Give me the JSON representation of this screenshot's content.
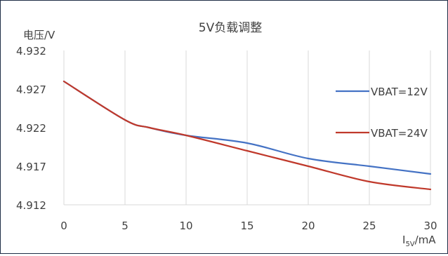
{
  "chart_data": {
    "type": "line",
    "title": "5V负载调整",
    "ylabel": "电压/V",
    "xlabel": {
      "main": "I",
      "subscript": "5V",
      "suffix": "/mA"
    },
    "x": [
      0,
      5,
      7,
      10,
      15,
      20,
      25,
      30
    ],
    "xlim": [
      0,
      30
    ],
    "ylim": [
      4.912,
      4.932
    ],
    "x_ticks": [
      0,
      5,
      10,
      15,
      20,
      25,
      30
    ],
    "y_ticks": [
      4.912,
      4.917,
      4.922,
      4.927,
      4.932
    ],
    "y_tick_labels": [
      "4.912",
      "4.917",
      "4.922",
      "4.927",
      "4.932"
    ],
    "grid": "vertical",
    "legend_position": "right",
    "series": [
      {
        "name": "VBAT=12V",
        "color": "#4472c4",
        "values": [
          4.928,
          4.923,
          4.922,
          4.921,
          4.92,
          4.918,
          4.917,
          4.916
        ]
      },
      {
        "name": "VBAT=24V",
        "color": "#c0392b",
        "values": [
          4.928,
          4.923,
          4.922,
          4.921,
          4.919,
          4.917,
          4.915,
          4.914
        ]
      }
    ]
  }
}
